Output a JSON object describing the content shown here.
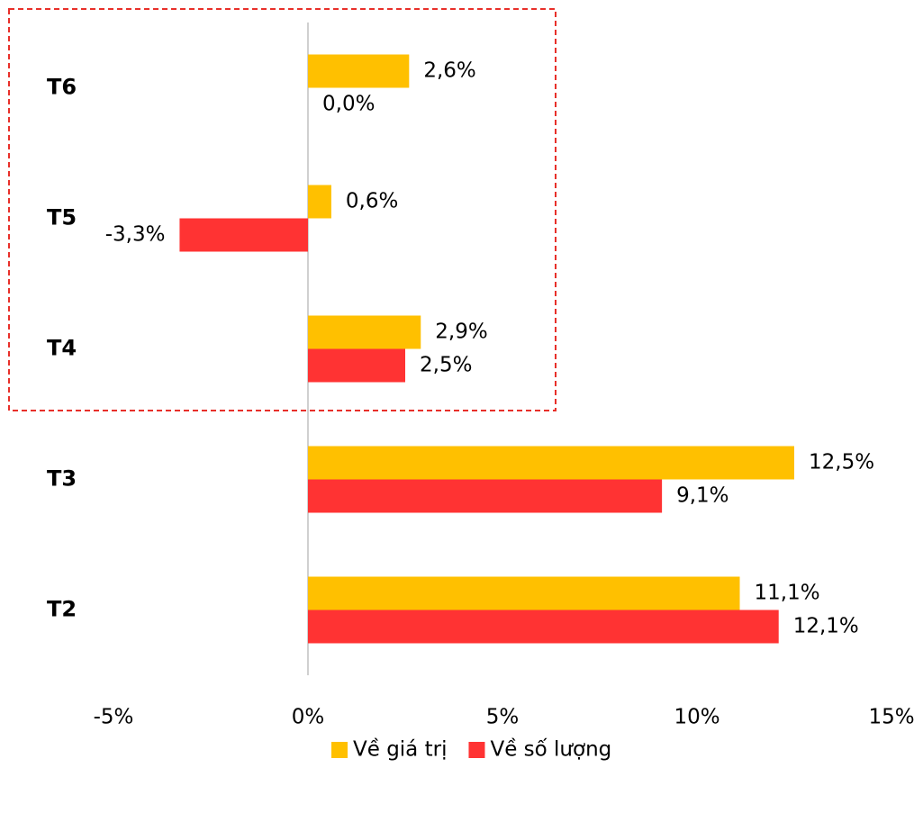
{
  "chart_data": {
    "type": "bar",
    "orientation": "horizontal",
    "categories": [
      "T6",
      "T5",
      "T4",
      "T3",
      "T2"
    ],
    "series": [
      {
        "name": "Về giá trị",
        "color": "#FFC000",
        "values": [
          2.6,
          0.6,
          2.9,
          12.5,
          11.1
        ],
        "value_labels": [
          "2,6%",
          "0,6%",
          "2,9%",
          "12,5%",
          "11,1%"
        ]
      },
      {
        "name": "Về số lượng",
        "color": "#FF3333",
        "values": [
          0.0,
          -3.3,
          2.5,
          9.1,
          12.1
        ],
        "value_labels": [
          "0,0%",
          "-3,3%",
          "2,5%",
          "9,1%",
          "12,1%"
        ]
      }
    ],
    "xlim": [
      -5,
      15
    ],
    "xticks": [
      {
        "value": -5,
        "label": "-5%"
      },
      {
        "value": 0,
        "label": "0%"
      },
      {
        "value": 5,
        "label": "5%"
      },
      {
        "value": 10,
        "label": "10%"
      },
      {
        "value": 15,
        "label": "15%"
      }
    ],
    "legend": "bottom"
  }
}
